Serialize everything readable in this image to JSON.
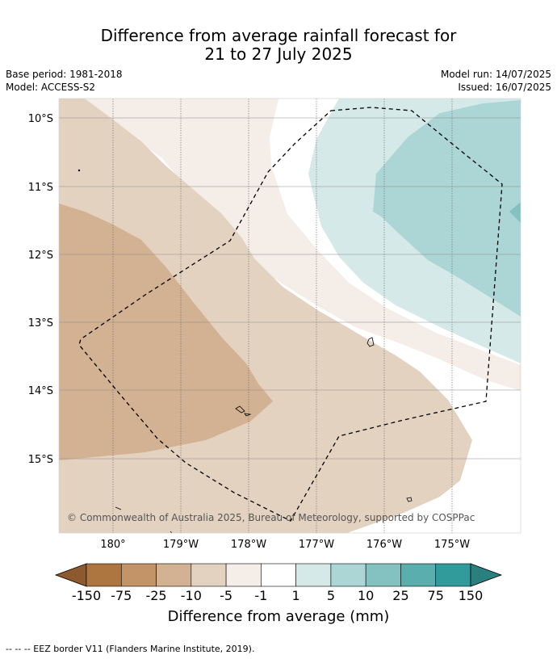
{
  "title_line1": "Difference from average rainfall forecast for",
  "title_line2": "21 to 27 July 2025",
  "base_period": "Base period: 1981-2018",
  "model": "Model: ACCESS-S2",
  "model_run": "Model run: 14/07/2025",
  "issued": "Issued: 16/07/2025",
  "copyright": "© Commonwealth of Australia 2025, Bureau of Meteorology, supported by COSPPac",
  "lat_labels": [
    "10°S",
    "11°S",
    "12°S",
    "13°S",
    "14°S",
    "15°S"
  ],
  "lon_labels": [
    "180°",
    "179°W",
    "178°W",
    "177°W",
    "176°W",
    "175°W"
  ],
  "colorbar": {
    "labels": [
      "-150",
      "-75",
      "-25",
      "-10",
      "-5",
      "-1",
      "1",
      "5",
      "10",
      "25",
      "75",
      "150"
    ],
    "colors": [
      "#8c5a2e",
      "#ad7641",
      "#c29468",
      "#d3b293",
      "#e4d2c1",
      "#f5ede7",
      "#ffffff",
      "#d5e9e9",
      "#acd5d5",
      "#84c2c2",
      "#5aaeae",
      "#319b9b",
      "#2a7f7f"
    ],
    "title": "Difference from average (mm)"
  },
  "footnote": "-- -- -- EEZ border V11 (Flanders Marine Institute, 2019)."
}
